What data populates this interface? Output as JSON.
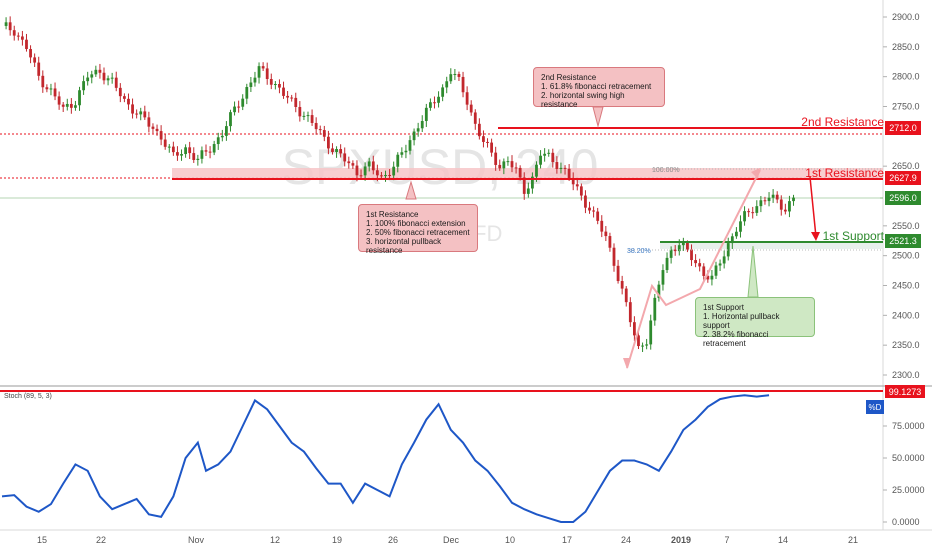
{
  "chart_data": [
    {
      "type": "candlestick",
      "watermark": {
        "symbol": "SPXUSD, 240",
        "subtitle": "US 500 CFD"
      },
      "y_axis": {
        "ylim": [
          2280,
          2925
        ],
        "ticks": [
          "2900.0",
          "2850.0",
          "2800.0",
          "2750.0",
          "2650.0",
          "2550.0",
          "2500.0",
          "2450.0",
          "2400.0",
          "2350.0",
          "2300.0"
        ],
        "tick_values": [
          2900,
          2850,
          2800,
          2750,
          2650,
          2550,
          2500,
          2450,
          2400,
          2350,
          2300
        ]
      },
      "x_axis": {
        "ticks": [
          "15",
          "22",
          "Nov",
          "12",
          "19",
          "26",
          "Dec",
          "10",
          "17",
          "24",
          "2019",
          "7",
          "14",
          "21"
        ]
      },
      "price_close_path": [
        [
          0,
          2885
        ],
        [
          3,
          2878
        ],
        [
          6,
          2848
        ],
        [
          9,
          2800
        ],
        [
          12,
          2775
        ],
        [
          15,
          2745
        ],
        [
          18,
          2760
        ],
        [
          21,
          2800
        ],
        [
          24,
          2810
        ],
        [
          27,
          2790
        ],
        [
          30,
          2760
        ],
        [
          33,
          2740
        ],
        [
          36,
          2720
        ],
        [
          39,
          2700
        ],
        [
          42,
          2665
        ],
        [
          45,
          2680
        ],
        [
          48,
          2660
        ],
        [
          51,
          2680
        ],
        [
          54,
          2705
        ],
        [
          57,
          2745
        ],
        [
          60,
          2780
        ],
        [
          63,
          2812
        ],
        [
          66,
          2795
        ],
        [
          69,
          2770
        ],
        [
          72,
          2750
        ],
        [
          75,
          2730
        ],
        [
          78,
          2705
        ],
        [
          81,
          2680
        ],
        [
          84,
          2660
        ],
        [
          87,
          2640
        ],
        [
          90,
          2650
        ],
        [
          93,
          2630
        ],
        [
          96,
          2650
        ],
        [
          99,
          2680
        ],
        [
          102,
          2720
        ],
        [
          105,
          2750
        ],
        [
          108,
          2780
        ],
        [
          110,
          2810
        ],
        [
          112,
          2790
        ],
        [
          114,
          2760
        ],
        [
          116,
          2720
        ],
        [
          118,
          2690
        ],
        [
          120,
          2670
        ],
        [
          122,
          2650
        ],
        [
          124,
          2660
        ],
        [
          126,
          2640
        ],
        [
          128,
          2610
        ],
        [
          130,
          2630
        ],
        [
          132,
          2670
        ],
        [
          134,
          2665
        ],
        [
          136,
          2655
        ],
        [
          138,
          2640
        ],
        [
          140,
          2620
        ],
        [
          142,
          2600
        ],
        [
          144,
          2580
        ],
        [
          146,
          2555
        ],
        [
          148,
          2530
        ],
        [
          150,
          2490
        ],
        [
          152,
          2440
        ],
        [
          154,
          2390
        ],
        [
          156,
          2345
        ],
        [
          158,
          2360
        ],
        [
          160,
          2420
        ],
        [
          162,
          2480
        ],
        [
          164,
          2510
        ],
        [
          166,
          2520
        ],
        [
          168,
          2505
        ],
        [
          170,
          2490
        ],
        [
          172,
          2470
        ],
        [
          174,
          2460
        ],
        [
          176,
          2490
        ],
        [
          178,
          2520
        ],
        [
          180,
          2545
        ],
        [
          182,
          2565
        ],
        [
          184,
          2580
        ],
        [
          186,
          2590
        ],
        [
          188,
          2598
        ],
        [
          190,
          2590
        ],
        [
          192,
          2580
        ],
        [
          194,
          2596
        ]
      ],
      "horizontal_levels": [
        {
          "name": "2nd Resistance",
          "value": 2712.0,
          "label": "2712.0"
        },
        {
          "name": "1st Resistance",
          "value": 2627.9,
          "label": "2627.9"
        },
        {
          "name": "1st Support",
          "value": 2521.3,
          "label": "2521.3"
        }
      ],
      "last_price": {
        "value": 2596.0,
        "label": "2596.0"
      },
      "fib_labels": [
        "100.00%",
        "38.20%"
      ],
      "level_labels": {
        "r2": "2nd Resistance",
        "r1": "1st Resistance",
        "s1": "1st Support"
      }
    },
    {
      "type": "line",
      "indicator": "Stoch (89, 5, 3)",
      "series_name": "%D",
      "ylim": [
        0,
        100
      ],
      "ticks": [
        "75.0000",
        "50.0000",
        "25.0000",
        "0.0000"
      ],
      "tick_values": [
        75,
        50,
        25,
        0
      ],
      "current": {
        "value": 99.1273,
        "label": "99.1273"
      },
      "values": [
        [
          0,
          20
        ],
        [
          3,
          21
        ],
        [
          6,
          12
        ],
        [
          9,
          8
        ],
        [
          12,
          14
        ],
        [
          15,
          30
        ],
        [
          18,
          45
        ],
        [
          21,
          40
        ],
        [
          24,
          20
        ],
        [
          27,
          10
        ],
        [
          30,
          14
        ],
        [
          33,
          18
        ],
        [
          36,
          6
        ],
        [
          39,
          4
        ],
        [
          42,
          20
        ],
        [
          45,
          50
        ],
        [
          48,
          62
        ],
        [
          50,
          40
        ],
        [
          53,
          45
        ],
        [
          56,
          55
        ],
        [
          59,
          75
        ],
        [
          62,
          95
        ],
        [
          65,
          88
        ],
        [
          68,
          75
        ],
        [
          71,
          62
        ],
        [
          74,
          55
        ],
        [
          77,
          42
        ],
        [
          80,
          30
        ],
        [
          83,
          30
        ],
        [
          86,
          15
        ],
        [
          89,
          30
        ],
        [
          92,
          25
        ],
        [
          95,
          20
        ],
        [
          98,
          45
        ],
        [
          101,
          62
        ],
        [
          104,
          80
        ],
        [
          107,
          92
        ],
        [
          110,
          72
        ],
        [
          113,
          62
        ],
        [
          116,
          48
        ],
        [
          119,
          40
        ],
        [
          122,
          28
        ],
        [
          125,
          15
        ],
        [
          128,
          10
        ],
        [
          131,
          6
        ],
        [
          134,
          3
        ],
        [
          137,
          0
        ],
        [
          140,
          0
        ],
        [
          143,
          8
        ],
        [
          146,
          24
        ],
        [
          149,
          40
        ],
        [
          152,
          48
        ],
        [
          155,
          48
        ],
        [
          158,
          45
        ],
        [
          161,
          40
        ],
        [
          164,
          55
        ],
        [
          167,
          72
        ],
        [
          170,
          80
        ],
        [
          173,
          90
        ],
        [
          176,
          96
        ],
        [
          179,
          98
        ],
        [
          182,
          99
        ],
        [
          185,
          98
        ],
        [
          188,
          99
        ]
      ]
    }
  ],
  "annotations": {
    "r2": {
      "title": "2nd Resistance",
      "lines": [
        "1. 61.8% fibonacci retracement",
        "2. horizontal swing high resistance"
      ]
    },
    "r1": {
      "title": "1st Resistance",
      "lines": [
        "1. 100% fibonacci extension",
        "2. 50% fibonacci retracement",
        "3. horizontal pullback resistance"
      ]
    },
    "s1": {
      "title": "1st Support",
      "lines": [
        "1. Horizontal pullback support",
        "2. 38.2% fibonacci retracement"
      ]
    }
  },
  "colors": {
    "resistance": "#e8121d",
    "support": "#2e8a2e",
    "stoch_line": "#1e57c7",
    "bull": "#2e8a2e",
    "bear": "#c2272d",
    "price_label_green": "#2e8a2e",
    "price_label_red": "#e8121d",
    "d_label": "#1e57c7"
  }
}
